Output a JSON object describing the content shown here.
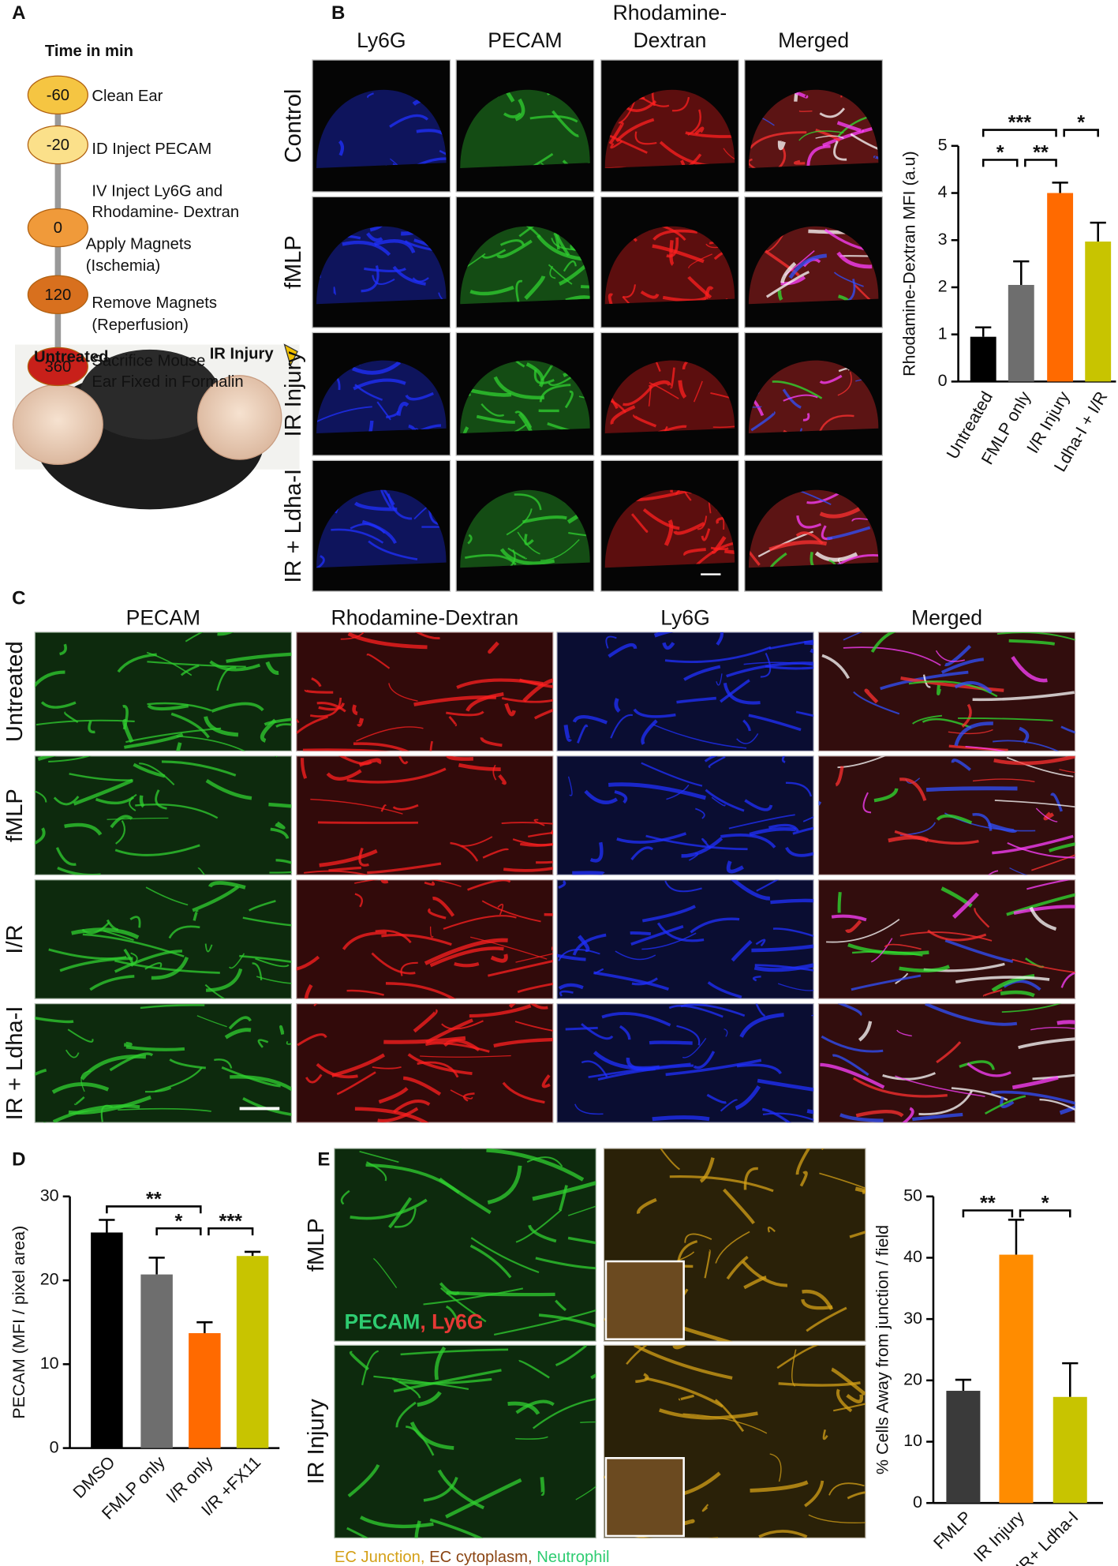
{
  "panel_labels": [
    "A",
    "B",
    "C",
    "D",
    "E"
  ],
  "panel_a": {
    "heading": "Time in min",
    "steps": [
      {
        "time": "-60",
        "lines": [
          "Clean Ear"
        ]
      },
      {
        "time": "-20",
        "lines": [
          "ID  Inject PECAM"
        ]
      },
      {
        "time": "0",
        "lines": [
          "IV Inject  Ly6G and",
          "Rhodamine- Dextran",
          "Apply Magnets",
          "(Ischemia)"
        ]
      },
      {
        "time": "120",
        "lines": [
          "Remove Magnets",
          "(Reperfusion)"
        ]
      },
      {
        "time": "360",
        "lines": [
          "Sacrifice Mouse",
          "Ear Fixed in Formalin"
        ]
      }
    ],
    "photo_labels": [
      "Untreated",
      "IR Injury"
    ]
  },
  "panel_b": {
    "columns": [
      [
        "Ly6G"
      ],
      [
        "PECAM"
      ],
      [
        "Rhodamine-",
        "Dextran"
      ],
      [
        "Merged"
      ]
    ],
    "rows": [
      "Control",
      "fMLP",
      "IR Injury",
      "IR + Ldha-I"
    ]
  },
  "panel_c": {
    "columns": [
      "PECAM",
      "Rhodamine-Dextran",
      "Ly6G",
      "Merged"
    ],
    "rows": [
      "Untreated",
      "fMLP",
      "I/R",
      "IR + Ldha-I"
    ]
  },
  "panel_e": {
    "rows": [
      "fMLP",
      "IR Injury"
    ],
    "overlay": [
      {
        "text": "PECAM",
        "color": "#2ecc71"
      },
      {
        "text": ", Ly6G",
        "color": "#e53935"
      }
    ],
    "caption": [
      {
        "text": "EC Junction, ",
        "color": "#d4a017"
      },
      {
        "text": "EC  cytoplasm, ",
        "color": "#8b4513"
      },
      {
        "text": "Neutrophil",
        "color": "#2ecc71"
      }
    ]
  },
  "chart_data": [
    {
      "type": "bar",
      "ylabel": "Rhodamine-Dextran MFI (a.u)",
      "categories": [
        "Untreated",
        "FMLP only",
        "I/R Injury",
        "Ldha-I + I/R"
      ],
      "values": [
        0.95,
        2.05,
        4.0,
        2.97
      ],
      "errors": [
        0.2,
        0.5,
        0.22,
        0.4
      ],
      "colors": [
        "#000000",
        "#6e6e6e",
        "#ff6a00",
        "#c8c400"
      ],
      "ylim": [
        0,
        5
      ],
      "yticks": [
        0,
        1,
        2,
        3,
        4,
        5
      ],
      "annotations": [
        "***",
        "*",
        "*",
        "**"
      ]
    },
    {
      "type": "bar",
      "ylabel": "PECAM (MFI / pixel area)",
      "categories": [
        "DMSO",
        "FMLP only",
        "I/R only",
        "I/R +FX11"
      ],
      "values": [
        25.7,
        20.7,
        13.7,
        22.9
      ],
      "errors": [
        1.5,
        2.0,
        1.3,
        0.5
      ],
      "colors": [
        "#000000",
        "#6e6e6e",
        "#ff6a00",
        "#c8c400"
      ],
      "ylim": [
        0,
        30
      ],
      "yticks": [
        0,
        10,
        20,
        30
      ],
      "annotations": [
        "**",
        "*",
        "***"
      ]
    },
    {
      "type": "bar",
      "ylabel": "% Cells Away from junction / field",
      "categories": [
        "FMLP",
        "IR Injury",
        "IR+ Ldha-I"
      ],
      "values": [
        18.3,
        40.5,
        17.3
      ],
      "errors": [
        1.8,
        5.7,
        5.5
      ],
      "colors": [
        "#3a3a3a",
        "#ff8c00",
        "#c8c400"
      ],
      "ylim": [
        0,
        50
      ],
      "yticks": [
        0,
        10,
        20,
        30,
        40,
        50
      ],
      "annotations": [
        "**",
        "*"
      ]
    }
  ]
}
